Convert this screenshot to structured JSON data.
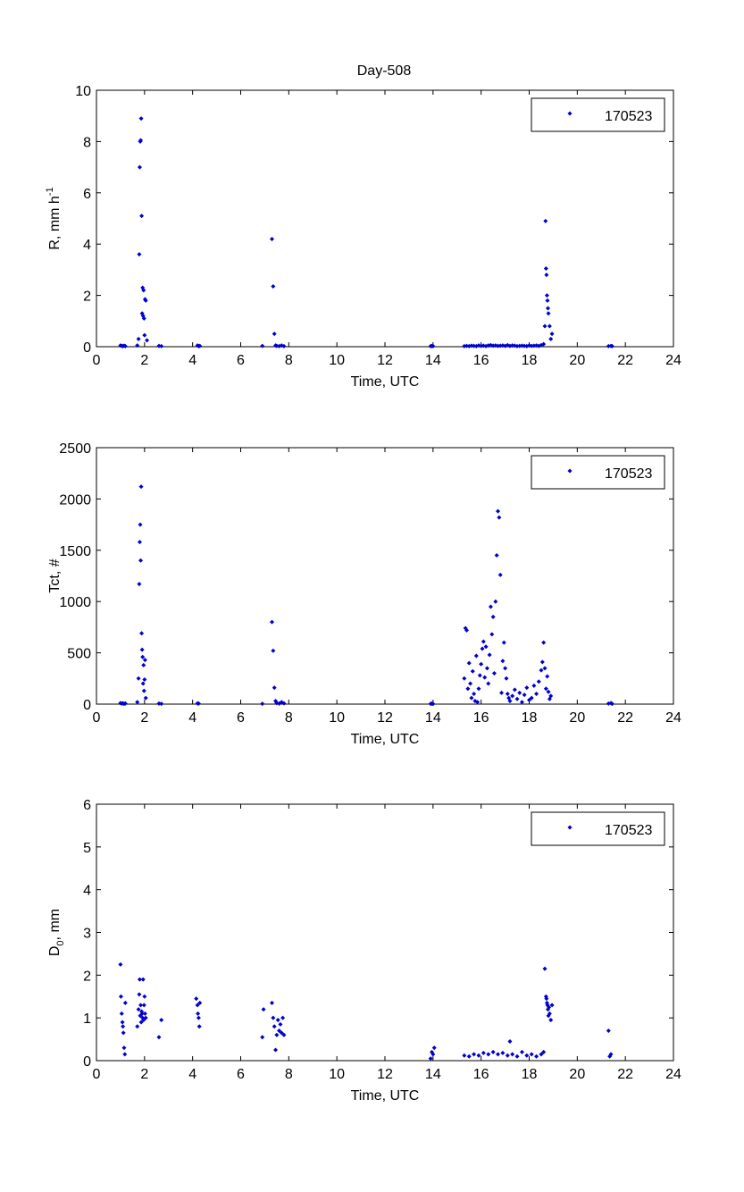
{
  "figure_title": "Day-508",
  "chart_data": [
    {
      "type": "scatter",
      "title": "Day-508",
      "xlabel": "Time, UTC",
      "ylabel": "R, mm h",
      "ylabel_sup": "-1",
      "xlim": [
        0,
        24
      ],
      "ylim": [
        0,
        10
      ],
      "xticks": [
        "0",
        "2",
        "4",
        "6",
        "8",
        "10",
        "12",
        "14",
        "16",
        "18",
        "20",
        "22",
        "24"
      ],
      "yticks": [
        "0",
        "2",
        "4",
        "6",
        "8",
        "10"
      ],
      "grid": false,
      "legend_position": "top-right",
      "marker_color": "#0000cc",
      "series": [
        {
          "name": "170523",
          "x": [
            1.0,
            1.05,
            1.1,
            1.15,
            1.2,
            1.7,
            1.75,
            1.78,
            1.8,
            1.82,
            1.84,
            1.86,
            1.88,
            1.9,
            1.92,
            1.94,
            1.96,
            1.98,
            2.0,
            2.02,
            2.05,
            2.1,
            2.6,
            2.7,
            4.2,
            4.25,
            4.3,
            6.9,
            7.3,
            7.35,
            7.4,
            7.45,
            7.5,
            7.6,
            7.7,
            7.8,
            13.9,
            13.95,
            14.0,
            15.3,
            15.4,
            15.5,
            15.6,
            15.7,
            15.8,
            15.9,
            16.0,
            16.1,
            16.2,
            16.3,
            16.4,
            16.5,
            16.6,
            16.7,
            16.8,
            16.9,
            17.0,
            17.1,
            17.2,
            17.3,
            17.4,
            17.5,
            17.6,
            17.7,
            17.8,
            17.9,
            18.0,
            18.1,
            18.2,
            18.3,
            18.4,
            18.5,
            18.6,
            18.65,
            18.68,
            18.7,
            18.72,
            18.74,
            18.76,
            18.78,
            18.8,
            18.85,
            18.9,
            18.95,
            21.3,
            21.4,
            21.45
          ],
          "y": [
            0.05,
            0.03,
            0.02,
            0.04,
            0.02,
            0.05,
            0.3,
            3.6,
            7.0,
            8.0,
            8.05,
            8.9,
            5.1,
            1.3,
            2.3,
            1.2,
            2.2,
            1.1,
            0.45,
            1.85,
            1.8,
            0.25,
            0.03,
            0.02,
            0.05,
            0.02,
            0.03,
            0.03,
            4.2,
            2.35,
            0.5,
            0.05,
            0.03,
            0.02,
            0.05,
            0.02,
            0.02,
            0.03,
            0.02,
            0.02,
            0.03,
            0.02,
            0.04,
            0.03,
            0.02,
            0.05,
            0.03,
            0.04,
            0.02,
            0.05,
            0.06,
            0.04,
            0.05,
            0.03,
            0.04,
            0.05,
            0.03,
            0.06,
            0.03,
            0.05,
            0.04,
            0.02,
            0.03,
            0.04,
            0.03,
            0.02,
            0.05,
            0.03,
            0.04,
            0.05,
            0.03,
            0.06,
            0.1,
            0.8,
            4.9,
            3.05,
            2.8,
            2.0,
            1.8,
            1.5,
            1.3,
            0.8,
            0.3,
            0.5,
            0.02,
            0.03,
            0.02
          ]
        }
      ]
    },
    {
      "type": "scatter",
      "title": "",
      "xlabel": "Time, UTC",
      "ylabel": "Tct, #",
      "xlim": [
        0,
        24
      ],
      "ylim": [
        0,
        2500
      ],
      "xticks": [
        "0",
        "2",
        "4",
        "6",
        "8",
        "10",
        "12",
        "14",
        "16",
        "18",
        "20",
        "22",
        "24"
      ],
      "yticks": [
        "0",
        "500",
        "1000",
        "1500",
        "2000",
        "2500"
      ],
      "grid": false,
      "legend_position": "top-right",
      "marker_color": "#0000cc",
      "series": [
        {
          "name": "170523",
          "x": [
            1.0,
            1.05,
            1.1,
            1.15,
            1.2,
            1.7,
            1.75,
            1.78,
            1.8,
            1.82,
            1.84,
            1.86,
            1.88,
            1.9,
            1.92,
            1.94,
            1.96,
            1.98,
            2.0,
            2.02,
            2.05,
            2.6,
            2.7,
            4.2,
            4.25,
            6.9,
            7.3,
            7.35,
            7.4,
            7.45,
            7.5,
            7.6,
            7.7,
            7.8,
            13.9,
            13.95,
            14.0,
            15.3,
            15.35,
            15.4,
            15.45,
            15.5,
            15.55,
            15.6,
            15.65,
            15.7,
            15.75,
            15.8,
            15.85,
            15.9,
            15.95,
            16.0,
            16.05,
            16.1,
            16.15,
            16.2,
            16.25,
            16.3,
            16.35,
            16.4,
            16.45,
            16.5,
            16.55,
            16.6,
            16.65,
            16.7,
            16.75,
            16.8,
            16.85,
            16.9,
            16.95,
            17.0,
            17.05,
            17.1,
            17.15,
            17.2,
            17.3,
            17.4,
            17.5,
            17.6,
            17.7,
            17.8,
            17.9,
            18.0,
            18.1,
            18.2,
            18.3,
            18.4,
            18.5,
            18.55,
            18.6,
            18.65,
            18.7,
            18.75,
            18.8,
            18.85,
            18.9,
            21.3,
            21.4,
            21.45
          ],
          "y": [
            10,
            5,
            8,
            3,
            6,
            20,
            250,
            1170,
            1580,
            1750,
            1400,
            2120,
            690,
            530,
            460,
            200,
            380,
            130,
            240,
            430,
            60,
            5,
            3,
            8,
            5,
            3,
            800,
            520,
            160,
            30,
            10,
            5,
            20,
            8,
            3,
            5,
            2,
            250,
            740,
            720,
            150,
            400,
            200,
            60,
            320,
            100,
            30,
            470,
            20,
            150,
            280,
            390,
            540,
            610,
            260,
            560,
            350,
            200,
            480,
            950,
            680,
            850,
            300,
            1000,
            1450,
            1880,
            1820,
            1260,
            110,
            420,
            600,
            350,
            250,
            100,
            60,
            30,
            80,
            140,
            50,
            110,
            20,
            90,
            160,
            40,
            60,
            180,
            100,
            220,
            330,
            410,
            600,
            350,
            150,
            270,
            120,
            50,
            80,
            5,
            10,
            3
          ]
        }
      ]
    },
    {
      "type": "scatter",
      "title": "",
      "xlabel": "Time, UTC",
      "ylabel": "D",
      "ylabel_sub": "0",
      "ylabel_tail": ", mm",
      "xlim": [
        0,
        24
      ],
      "ylim": [
        0,
        6
      ],
      "xticks": [
        "0",
        "2",
        "4",
        "6",
        "8",
        "10",
        "12",
        "14",
        "16",
        "18",
        "20",
        "22",
        "24"
      ],
      "yticks": [
        "0",
        "1",
        "2",
        "3",
        "4",
        "5",
        "6"
      ],
      "grid": false,
      "legend_position": "top-right",
      "marker_color": "#0000cc",
      "series": [
        {
          "name": "170523",
          "x": [
            1.0,
            1.02,
            1.05,
            1.08,
            1.1,
            1.12,
            1.15,
            1.18,
            1.2,
            1.7,
            1.75,
            1.78,
            1.8,
            1.82,
            1.84,
            1.86,
            1.88,
            1.9,
            1.92,
            1.94,
            1.96,
            1.98,
            2.0,
            2.02,
            2.05,
            2.6,
            2.7,
            4.15,
            4.2,
            4.22,
            4.25,
            4.28,
            4.3,
            6.9,
            6.95,
            7.3,
            7.35,
            7.4,
            7.45,
            7.5,
            7.55,
            7.6,
            7.65,
            7.7,
            7.75,
            7.8,
            13.9,
            13.95,
            14.0,
            14.05,
            15.3,
            15.5,
            15.7,
            15.9,
            16.1,
            16.3,
            16.5,
            16.7,
            16.9,
            17.1,
            17.2,
            17.3,
            17.5,
            17.7,
            17.9,
            18.1,
            18.3,
            18.5,
            18.6,
            18.65,
            18.7,
            18.72,
            18.74,
            18.76,
            18.78,
            18.8,
            18.82,
            18.85,
            18.9,
            18.95,
            21.3,
            21.35,
            21.4
          ],
          "y": [
            2.25,
            1.5,
            1.1,
            0.9,
            0.8,
            0.65,
            0.3,
            0.15,
            1.35,
            0.8,
            1.2,
            1.55,
            1.9,
            1.05,
            1.3,
            0.9,
            1.15,
            1.1,
            1.0,
            1.9,
            0.95,
            1.3,
            1.5,
            1.1,
            1.0,
            0.55,
            0.95,
            1.45,
            1.3,
            1.1,
            1.0,
            0.8,
            1.35,
            0.55,
            1.2,
            1.35,
            1.0,
            0.8,
            0.25,
            0.6,
            0.95,
            0.7,
            0.85,
            0.65,
            1.0,
            0.6,
            0.05,
            0.2,
            0.15,
            0.3,
            0.12,
            0.1,
            0.15,
            0.12,
            0.18,
            0.15,
            0.2,
            0.15,
            0.18,
            0.12,
            0.45,
            0.15,
            0.1,
            0.2,
            0.12,
            0.15,
            0.1,
            0.15,
            0.2,
            2.15,
            1.5,
            1.45,
            1.35,
            1.3,
            1.2,
            1.05,
            1.25,
            1.1,
            0.95,
            1.3,
            0.7,
            0.1,
            0.15
          ]
        }
      ]
    }
  ]
}
